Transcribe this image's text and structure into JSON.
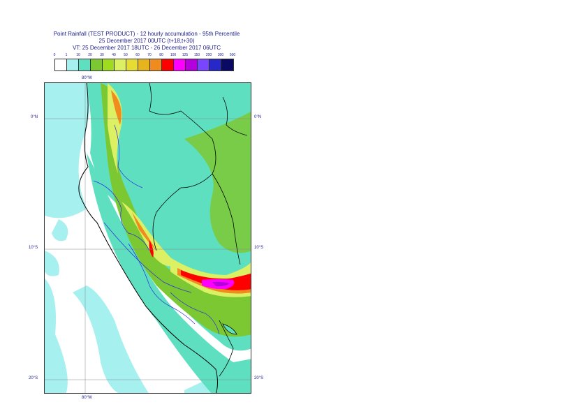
{
  "title": {
    "line1": "Point Rainfall (TEST PRODUCT) - 12 hourly accumulation - 95th Percentile",
    "line2": "25 December 2017 00UTC (t+18,t+30)",
    "line3": "VT: 25 December 2017 18UTC - 26 December 2017 06UTC"
  },
  "legend": {
    "thresholds": [
      "0",
      "1",
      "10",
      "20",
      "30",
      "40",
      "50",
      "60",
      "70",
      "80",
      "100",
      "125",
      "150",
      "200",
      "300",
      "500"
    ],
    "colors": [
      "#ffffff",
      "#a6f0f0",
      "#5ee0c0",
      "#7cc832",
      "#a0dc1e",
      "#dcf064",
      "#e6dc32",
      "#e6b41e",
      "#f08c1e",
      "#ff0000",
      "#ff00ff",
      "#b400dc",
      "#7846ff",
      "#2828c8",
      "#0a0a64"
    ]
  },
  "axes": {
    "top_lon": "80°W",
    "bottom_lon": "80°W",
    "left_lat": [
      "0°N",
      "10°S",
      "20°S"
    ],
    "right_lat": [
      "0°N",
      "10°S",
      "20°S"
    ]
  },
  "map": {
    "ocean_light": "#a6f0f0",
    "land_base": "#5ee0c0",
    "coast_color": "#000000",
    "admin_color": "#2a2ae0"
  }
}
